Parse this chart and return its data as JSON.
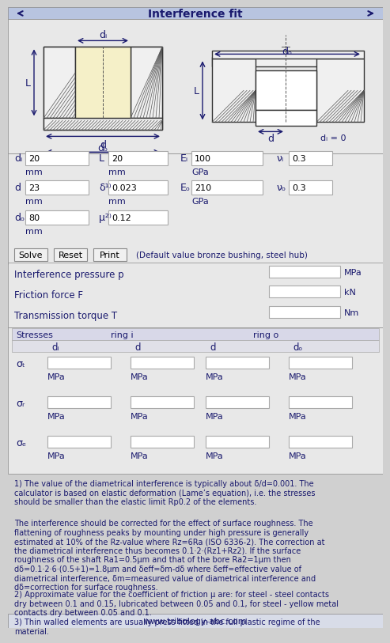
{
  "title": "Interference fit",
  "bg_color": "#d0d0d0",
  "header_bg": "#b8c4e0",
  "header_text_color": "#1a1a6e",
  "body_bg": "#e8e8e8",
  "white": "#ffffff",
  "light_gray": "#f0f0f0",
  "table_header_bg": "#d8d8e8",
  "text_color": "#1a1a6e",
  "input_fields": {
    "di": "20",
    "di_unit": "mm",
    "d": "23",
    "d_unit": "mm",
    "do": "80",
    "do_unit": "mm",
    "L": "20",
    "L_unit": "mm",
    "delta": "0.023",
    "delta_unit": "mm",
    "mu": "0.12",
    "Ei": "100",
    "Ei_unit": "GPa",
    "Eo": "210",
    "Eo_unit": "GPa",
    "vi": "0.3",
    "vo": "0.3"
  },
  "buttons": [
    "Solve",
    "Reset",
    "Print"
  ],
  "default_text": "(Default value bronze bushing, steel hub)",
  "outputs": {
    "interference_pressure_p": {
      "label": "Interference pressure p",
      "unit": "MPa"
    },
    "friction_force_F": {
      "label": "Friction force F",
      "unit": "kN"
    },
    "transmission_torque_T": {
      "label": "Transmission torque T",
      "unit": "Nm"
    }
  },
  "stress_table": {
    "header1": "Stresses",
    "ring_i": "ring i",
    "ring_o": "ring o",
    "col_di": "dᵢ",
    "col_d1": "d",
    "col_d2": "d",
    "col_do": "dₒ",
    "rows": [
      "σₜ",
      "σᵣ",
      "σₑ"
    ],
    "unit": "MPa"
  },
  "footnotes": [
    "1) The value of the diametrical interference is typically about δ/d=0.001. The\ncalculator is based on elastic deformation (Lame’s equation), i.e. the stresses\nshould be smaller than the elastic limit Rp0.2 of the elements.",
    "The interference should be corrected for the effect of surface roughness. The\nflattening of roughness peaks by mounting under high pressure is generally\nestimated at 10% of the Rz-value where Rz=6Ra (ISO 6336-2). The correction at\nthe diametrical interference thus becomes 0.1·2·(Rz1+Rz2). If the surface\nroughness of the shaft Ra1=0.5μm and that of the bore Ra2=1μm then\ndδ=0.1·2·6·(0.5+1)=1.8μm and δeff=δm-dδ where δeff=effective value of\ndiametrical interference, δm=measured value of diametrical interference and\ndδ=correction for surface roughness.",
    "2) Approximate value for the coefficient of friction μ are: for steel - steel contacts\ndry between 0.1 and 0.15, lubricated between 0.05 and 0.1, for steel - yellow metal\ncontacts dry between 0.05 and 0.1.",
    "3) Thin walled elements are usually press fitted in the full plastic regime of the\nmaterial."
  ],
  "footer": "www.tribology-abc.com",
  "arrow_color": "#1a1a6e",
  "hatch_color": "#555555",
  "diagram_bg": "#ffffff",
  "yellow_fill": "#f5f0c8"
}
